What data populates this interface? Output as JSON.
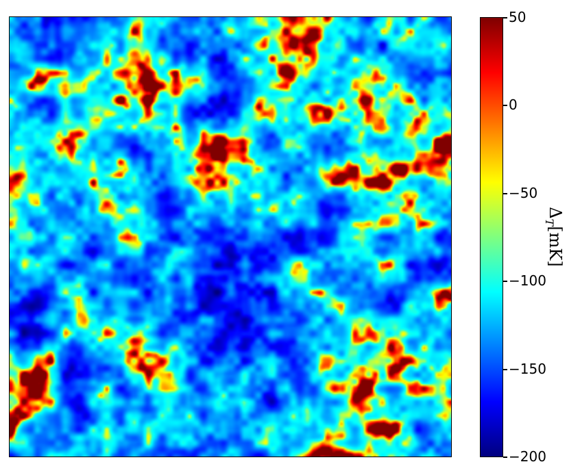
{
  "chart_data": {
    "type": "heatmap",
    "title": "",
    "xlabel": "",
    "ylabel": "",
    "colorbar": {
      "label_base": "Δ",
      "label_sub": "T",
      "label_unit": "[mK]",
      "range": [
        -200,
        50
      ],
      "ticks": [
        50,
        0,
        -50,
        -100,
        -150,
        -200
      ],
      "tick_labels": [
        "50",
        "0",
        "−50",
        "−100",
        "−150",
        "−200"
      ],
      "colormap": "jet",
      "colormap_stops": [
        "#00007f",
        "#0000ff",
        "#007fff",
        "#00ffff",
        "#7fff7f",
        "#ffff00",
        "#ff7f00",
        "#ff0000",
        "#7f0000"
      ]
    },
    "axes_ticks_visible": false,
    "field_description_values": {
      "typical_min": -200,
      "typical_max": 50,
      "dominant_range": [
        -170,
        -90
      ]
    }
  }
}
